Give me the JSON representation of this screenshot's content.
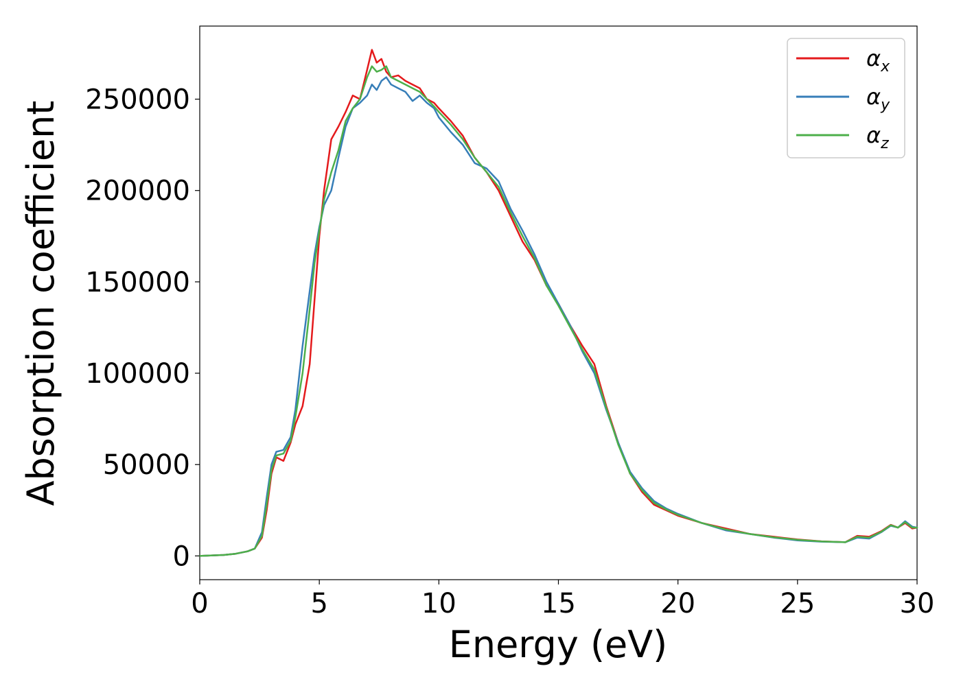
{
  "chart_data": {
    "type": "line",
    "title": "",
    "xlabel": "Energy (eV)",
    "ylabel": "Absorption coefficient",
    "xlim": [
      0,
      30
    ],
    "ylim": [
      -13000,
      290000
    ],
    "xticks": [
      0,
      5,
      10,
      15,
      20,
      25,
      30
    ],
    "yticks": [
      0,
      50000,
      100000,
      150000,
      200000,
      250000
    ],
    "grid": false,
    "legend_position": "top-right",
    "series": [
      {
        "name": "αx",
        "legend_base": "α",
        "legend_sub": "x",
        "color": "#e41a1c",
        "x": [
          0,
          1,
          1.5,
          2,
          2.3,
          2.6,
          2.8,
          3.0,
          3.2,
          3.5,
          3.8,
          4.0,
          4.3,
          4.6,
          4.8,
          5.0,
          5.2,
          5.5,
          5.8,
          6.1,
          6.4,
          6.7,
          7.0,
          7.2,
          7.4,
          7.6,
          7.8,
          8.0,
          8.3,
          8.6,
          8.9,
          9.2,
          9.5,
          9.8,
          10.0,
          10.5,
          11.0,
          11.5,
          12.0,
          12.5,
          13.0,
          13.5,
          14.0,
          14.5,
          15.0,
          15.5,
          16.0,
          16.5,
          17.0,
          17.5,
          18.0,
          18.5,
          19.0,
          19.5,
          20.0,
          21.0,
          22.0,
          23.0,
          24.0,
          25.0,
          26.0,
          27.0,
          27.5,
          28.0,
          28.5,
          28.9,
          29.2,
          29.5,
          29.8,
          30.0
        ],
        "y": [
          0,
          500,
          1200,
          2500,
          4000,
          10000,
          25000,
          45000,
          54000,
          52000,
          62000,
          72000,
          82000,
          105000,
          140000,
          175000,
          200000,
          228000,
          235000,
          243000,
          252000,
          250000,
          266000,
          277000,
          270000,
          272000,
          265000,
          262000,
          263000,
          260000,
          258000,
          256000,
          250000,
          248000,
          245000,
          238000,
          230000,
          218000,
          210000,
          200000,
          186000,
          172000,
          162000,
          148000,
          138000,
          126000,
          115000,
          105000,
          82000,
          62000,
          45000,
          35000,
          28000,
          25000,
          22000,
          18000,
          15000,
          12000,
          10500,
          9000,
          8000,
          7500,
          11000,
          10500,
          13500,
          17000,
          15500,
          18000,
          15000,
          15500
        ]
      },
      {
        "name": "αy",
        "legend_base": "α",
        "legend_sub": "y",
        "color": "#377eb8",
        "x": [
          0,
          1,
          1.5,
          2,
          2.3,
          2.6,
          2.8,
          3.0,
          3.2,
          3.5,
          3.8,
          4.0,
          4.3,
          4.6,
          4.8,
          5.0,
          5.2,
          5.5,
          5.8,
          6.1,
          6.4,
          6.7,
          7.0,
          7.2,
          7.4,
          7.6,
          7.8,
          8.0,
          8.3,
          8.6,
          8.9,
          9.2,
          9.5,
          9.8,
          10.0,
          10.5,
          11.0,
          11.5,
          12.0,
          12.5,
          13.0,
          13.5,
          14.0,
          14.5,
          15.0,
          15.5,
          16.0,
          16.5,
          17.0,
          17.5,
          18.0,
          18.5,
          19.0,
          19.5,
          20.0,
          21.0,
          22.0,
          23.0,
          24.0,
          25.0,
          26.0,
          27.0,
          27.5,
          28.0,
          28.5,
          28.9,
          29.2,
          29.5,
          29.8,
          30.0
        ],
        "y": [
          0,
          500,
          1200,
          2500,
          4000,
          13000,
          32000,
          50000,
          57000,
          58000,
          65000,
          80000,
          115000,
          145000,
          165000,
          180000,
          192000,
          200000,
          218000,
          235000,
          245000,
          248000,
          252000,
          258000,
          255000,
          260000,
          262000,
          258000,
          256000,
          254000,
          249000,
          252000,
          248000,
          245000,
          240000,
          232000,
          225000,
          215000,
          212000,
          205000,
          190000,
          178000,
          165000,
          150000,
          138000,
          126000,
          112000,
          100000,
          80000,
          62000,
          46000,
          37000,
          30000,
          26000,
          23000,
          18000,
          14000,
          12000,
          10000,
          8500,
          7800,
          7500,
          10000,
          9500,
          13000,
          16500,
          15500,
          19000,
          16000,
          15500
        ]
      },
      {
        "name": "αz",
        "legend_base": "α",
        "legend_sub": "z",
        "color": "#4daf4a",
        "x": [
          0,
          1,
          1.5,
          2,
          2.3,
          2.6,
          2.8,
          3.0,
          3.2,
          3.5,
          3.8,
          4.0,
          4.3,
          4.6,
          4.8,
          5.0,
          5.2,
          5.5,
          5.8,
          6.1,
          6.4,
          6.7,
          7.0,
          7.2,
          7.4,
          7.6,
          7.8,
          8.0,
          8.3,
          8.6,
          8.9,
          9.2,
          9.5,
          9.8,
          10.0,
          10.5,
          11.0,
          11.5,
          12.0,
          12.5,
          13.0,
          13.5,
          14.0,
          14.5,
          15.0,
          15.5,
          16.0,
          16.5,
          17.0,
          17.5,
          18.0,
          18.5,
          19.0,
          19.5,
          20.0,
          21.0,
          22.0,
          23.0,
          24.0,
          25.0,
          26.0,
          27.0,
          27.5,
          28.0,
          28.5,
          28.9,
          29.2,
          29.5,
          29.8,
          30.0
        ],
        "y": [
          0,
          500,
          1200,
          2500,
          4000,
          11000,
          28000,
          47000,
          55000,
          56000,
          63000,
          76000,
          100000,
          135000,
          160000,
          178000,
          195000,
          210000,
          222000,
          238000,
          245000,
          250000,
          262000,
          268000,
          265000,
          266000,
          268000,
          262000,
          260000,
          258000,
          256000,
          254000,
          250000,
          246000,
          243000,
          236000,
          228000,
          218000,
          210000,
          202000,
          188000,
          175000,
          163000,
          148000,
          137000,
          125000,
          113000,
          102000,
          81000,
          61000,
          45000,
          36000,
          29000,
          25500,
          22500,
          18000,
          14500,
          12000,
          10200,
          8800,
          7900,
          7500,
          10500,
          10000,
          13200,
          16800,
          15500,
          18500,
          15500,
          15500
        ]
      }
    ]
  }
}
